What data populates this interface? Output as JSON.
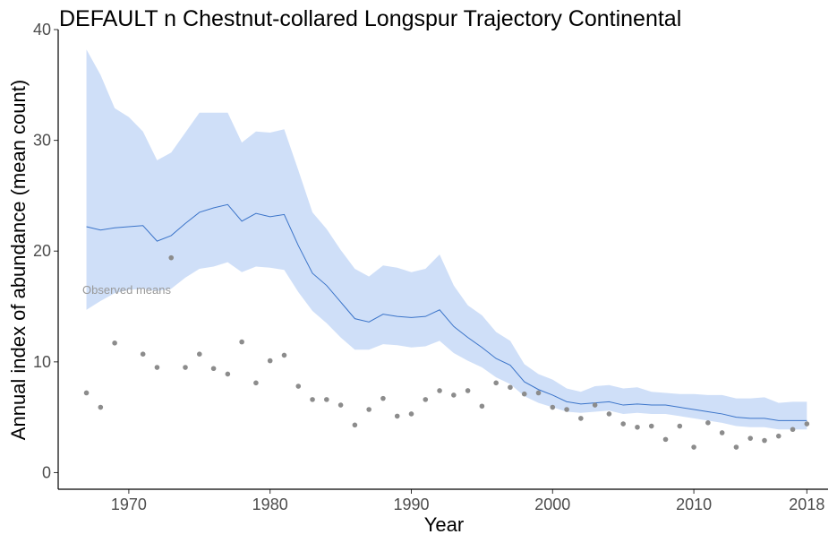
{
  "chart_data": {
    "type": "line",
    "title": "DEFAULT n Chestnut-collared Longspur Trajectory Continental",
    "xlabel": "Year",
    "ylabel": "Annual index of abundance (mean count)",
    "xlim": [
      1965,
      2019.5
    ],
    "ylim": [
      -1.5,
      40
    ],
    "x_ticks": [
      1970,
      1980,
      1990,
      2000,
      2010,
      2018
    ],
    "y_ticks": [
      0,
      10,
      20,
      30,
      40
    ],
    "grid": false,
    "annotation": "Observed means",
    "colors": {
      "band": "#cfdff8",
      "line": "#3b74c9",
      "points": "#8c8c8c"
    },
    "series": [
      {
        "type": "line",
        "x": [
          1967,
          1968,
          1969,
          1970,
          1971,
          1972,
          1973,
          1974,
          1975,
          1976,
          1977,
          1978,
          1979,
          1980,
          1981,
          1982,
          1983,
          1984,
          1985,
          1986,
          1987,
          1988,
          1989,
          1990,
          1991,
          1992,
          1993,
          1994,
          1995,
          1996,
          1997,
          1998,
          1999,
          2000,
          2001,
          2002,
          2003,
          2004,
          2005,
          2006,
          2007,
          2008,
          2009,
          2010,
          2011,
          2012,
          2013,
          2014,
          2015,
          2016,
          2017,
          2018
        ],
        "values": [
          22.2,
          21.9,
          22.1,
          22.2,
          22.3,
          20.9,
          21.4,
          22.5,
          23.5,
          23.9,
          24.2,
          22.7,
          23.4,
          23.1,
          23.3,
          20.5,
          18.0,
          16.9,
          15.4,
          13.9,
          13.6,
          14.3,
          14.1,
          14.0,
          14.1,
          14.7,
          13.2,
          12.2,
          11.3,
          10.3,
          9.7,
          8.2,
          7.5,
          7.0,
          6.4,
          6.2,
          6.3,
          6.4,
          6.1,
          6.2,
          6.1,
          6.1,
          5.9,
          5.7,
          5.5,
          5.3,
          5.0,
          4.9,
          4.9,
          4.7,
          4.7,
          4.7
        ],
        "lower": [
          14.7,
          15.5,
          16.2,
          16.5,
          16.6,
          16.4,
          16.6,
          17.6,
          18.4,
          18.6,
          19.0,
          18.1,
          18.6,
          18.5,
          18.3,
          16.3,
          14.6,
          13.5,
          12.2,
          11.1,
          11.1,
          11.6,
          11.5,
          11.3,
          11.4,
          11.9,
          10.8,
          10.1,
          9.5,
          8.6,
          8.0,
          6.9,
          6.3,
          5.9,
          5.5,
          5.4,
          5.5,
          5.6,
          5.3,
          5.4,
          5.3,
          5.3,
          5.1,
          4.9,
          4.7,
          4.5,
          4.2,
          4.1,
          4.1,
          3.9,
          3.9,
          3.9
        ],
        "upper": [
          38.2,
          35.9,
          32.9,
          32.1,
          30.8,
          28.2,
          28.9,
          30.7,
          32.5,
          32.5,
          32.5,
          29.8,
          30.8,
          30.7,
          31.0,
          27.3,
          23.5,
          22.0,
          20.1,
          18.4,
          17.7,
          18.7,
          18.5,
          18.1,
          18.4,
          19.7,
          16.9,
          15.1,
          14.2,
          12.7,
          11.9,
          9.8,
          8.9,
          8.4,
          7.6,
          7.3,
          7.8,
          7.9,
          7.6,
          7.7,
          7.3,
          7.2,
          7.1,
          7.1,
          7.0,
          7.0,
          6.7,
          6.7,
          6.8,
          6.3,
          6.4,
          6.4
        ]
      },
      {
        "type": "scatter",
        "x": [
          1967,
          1968,
          1969,
          1971,
          1972,
          1973,
          1974,
          1975,
          1976,
          1977,
          1978,
          1979,
          1980,
          1981,
          1982,
          1983,
          1984,
          1985,
          1986,
          1987,
          1988,
          1989,
          1990,
          1991,
          1992,
          1993,
          1994,
          1995,
          1996,
          1997,
          1998,
          1999,
          2000,
          2001,
          2002,
          2003,
          2004,
          2005,
          2006,
          2007,
          2008,
          2009,
          2010,
          2011,
          2012,
          2013,
          2014,
          2015,
          2016,
          2017,
          2018
        ],
        "values": [
          7.2,
          5.9,
          11.7,
          10.7,
          9.5,
          19.4,
          9.5,
          10.7,
          9.4,
          8.9,
          11.8,
          8.1,
          10.1,
          10.6,
          7.8,
          6.6,
          6.6,
          6.1,
          4.3,
          5.7,
          6.7,
          5.1,
          5.3,
          6.6,
          7.4,
          7.0,
          7.4,
          6.0,
          8.1,
          7.7,
          7.1,
          7.2,
          5.9,
          5.7,
          4.9,
          6.1,
          5.3,
          4.4,
          4.1,
          4.2,
          3.0,
          4.2,
          2.3,
          4.5,
          3.6,
          2.3,
          3.1,
          2.9,
          3.3,
          3.9,
          4.4
        ]
      }
    ]
  }
}
